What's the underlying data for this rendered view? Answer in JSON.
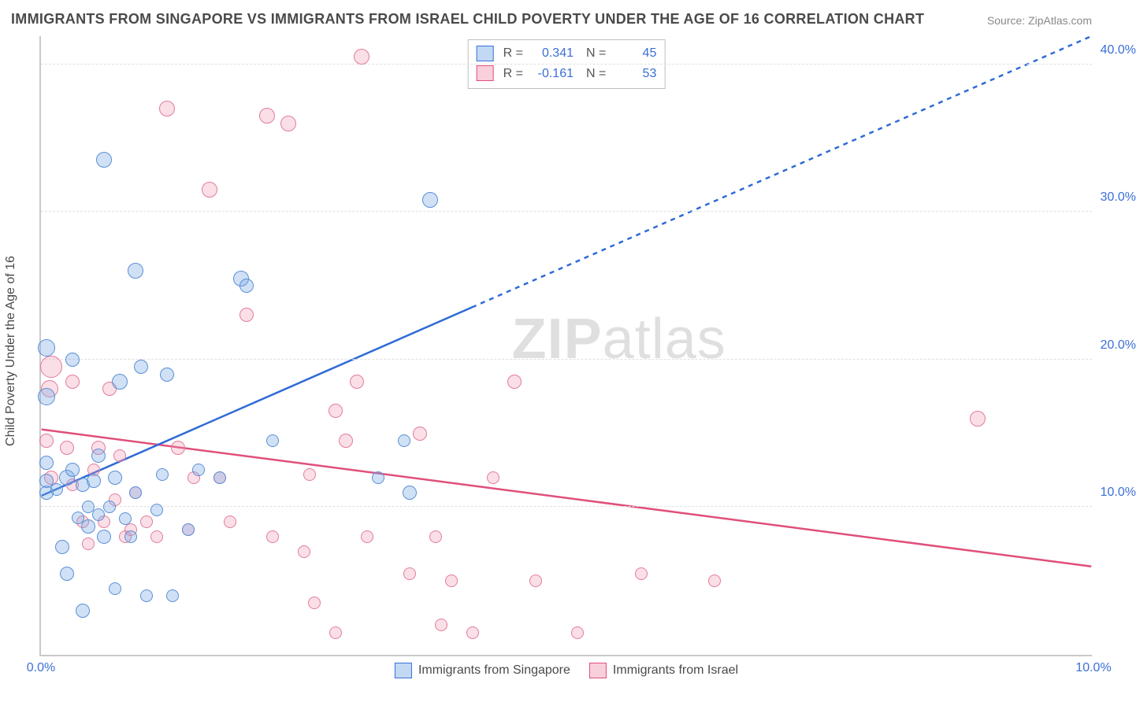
{
  "title": "IMMIGRANTS FROM SINGAPORE VS IMMIGRANTS FROM ISRAEL CHILD POVERTY UNDER THE AGE OF 16 CORRELATION CHART",
  "source": "Source: ZipAtlas.com",
  "ylabel": "Child Poverty Under the Age of 16",
  "watermark": "ZIPatlas",
  "chart": {
    "type": "scatter",
    "xlim": [
      0,
      10
    ],
    "ylim": [
      0,
      42
    ],
    "x_ticks": [
      {
        "v": 0,
        "label": "0.0%"
      },
      {
        "v": 10,
        "label": "10.0%"
      }
    ],
    "y_gridlines": [
      10,
      20,
      30,
      40
    ],
    "y_tick_labels": {
      "10": "10.0%",
      "20": "20.0%",
      "30": "30.0%",
      "40": "40.0%"
    },
    "background_color": "#ffffff",
    "grid_color": "#e0e0e0",
    "axis_color": "#c9c9c9",
    "axis_tick_color": "#3b6fd6",
    "title_color": "#4a4a4a",
    "title_fontsize": 18,
    "label_fontsize": 16
  },
  "stats_legend": [
    {
      "swatch": "blue",
      "R": "0.341",
      "N": "45"
    },
    {
      "swatch": "pink",
      "R": "-0.161",
      "N": "53"
    }
  ],
  "series_legend": [
    {
      "swatch": "blue",
      "label": "Immigrants from Singapore"
    },
    {
      "swatch": "pink",
      "label": "Immigrants from Israel"
    }
  ],
  "series": {
    "singapore": {
      "color_fill": "rgba(120,170,230,0.35)",
      "color_stroke": "#5b8fd6",
      "trend": {
        "x1": 0,
        "y1": 10.8,
        "x2": 10,
        "y2": 42,
        "solid_until_x": 4.1,
        "color": "#2e6bd6",
        "width": 2.5,
        "dash": "6,6"
      },
      "points": [
        {
          "x": 0.05,
          "y": 11.0,
          "r": 9
        },
        {
          "x": 0.05,
          "y": 11.8,
          "r": 9
        },
        {
          "x": 0.05,
          "y": 13.0,
          "r": 9
        },
        {
          "x": 0.05,
          "y": 17.5,
          "r": 11
        },
        {
          "x": 0.05,
          "y": 20.8,
          "r": 11
        },
        {
          "x": 0.15,
          "y": 11.2,
          "r": 8
        },
        {
          "x": 0.2,
          "y": 7.3,
          "r": 9
        },
        {
          "x": 0.25,
          "y": 5.5,
          "r": 9
        },
        {
          "x": 0.25,
          "y": 12.0,
          "r": 10
        },
        {
          "x": 0.3,
          "y": 12.5,
          "r": 9
        },
        {
          "x": 0.3,
          "y": 20.0,
          "r": 9
        },
        {
          "x": 0.35,
          "y": 9.3,
          "r": 8
        },
        {
          "x": 0.4,
          "y": 11.5,
          "r": 9
        },
        {
          "x": 0.4,
          "y": 3.0,
          "r": 9
        },
        {
          "x": 0.45,
          "y": 8.7,
          "r": 9
        },
        {
          "x": 0.45,
          "y": 10.0,
          "r": 8
        },
        {
          "x": 0.5,
          "y": 11.8,
          "r": 9
        },
        {
          "x": 0.55,
          "y": 9.5,
          "r": 8
        },
        {
          "x": 0.55,
          "y": 13.5,
          "r": 9
        },
        {
          "x": 0.6,
          "y": 8.0,
          "r": 9
        },
        {
          "x": 0.6,
          "y": 33.5,
          "r": 10
        },
        {
          "x": 0.65,
          "y": 10.0,
          "r": 8
        },
        {
          "x": 0.7,
          "y": 4.5,
          "r": 8
        },
        {
          "x": 0.7,
          "y": 12.0,
          "r": 9
        },
        {
          "x": 0.75,
          "y": 18.5,
          "r": 10
        },
        {
          "x": 0.8,
          "y": 9.2,
          "r": 8
        },
        {
          "x": 0.85,
          "y": 8.0,
          "r": 8
        },
        {
          "x": 0.9,
          "y": 11.0,
          "r": 8
        },
        {
          "x": 0.9,
          "y": 26.0,
          "r": 10
        },
        {
          "x": 0.95,
          "y": 19.5,
          "r": 9
        },
        {
          "x": 1.0,
          "y": 4.0,
          "r": 8
        },
        {
          "x": 1.1,
          "y": 9.8,
          "r": 8
        },
        {
          "x": 1.15,
          "y": 12.2,
          "r": 8
        },
        {
          "x": 1.2,
          "y": 19.0,
          "r": 9
        },
        {
          "x": 1.25,
          "y": 4.0,
          "r": 8
        },
        {
          "x": 1.4,
          "y": 8.5,
          "r": 8
        },
        {
          "x": 1.5,
          "y": 12.5,
          "r": 8
        },
        {
          "x": 1.7,
          "y": 12.0,
          "r": 8
        },
        {
          "x": 1.9,
          "y": 25.5,
          "r": 10
        },
        {
          "x": 1.95,
          "y": 25.0,
          "r": 9
        },
        {
          "x": 2.2,
          "y": 14.5,
          "r": 8
        },
        {
          "x": 3.2,
          "y": 12.0,
          "r": 8
        },
        {
          "x": 3.5,
          "y": 11.0,
          "r": 9
        },
        {
          "x": 3.45,
          "y": 14.5,
          "r": 8
        },
        {
          "x": 3.7,
          "y": 30.8,
          "r": 10
        }
      ]
    },
    "israel": {
      "color_fill": "rgba(240,150,175,0.30)",
      "color_stroke": "#e47b9c",
      "trend": {
        "x1": 0,
        "y1": 15.3,
        "x2": 10,
        "y2": 6.0,
        "solid_until_x": 10,
        "color": "#e04f7a",
        "width": 2.5,
        "dash": "0"
      },
      "points": [
        {
          "x": 0.05,
          "y": 14.5,
          "r": 9
        },
        {
          "x": 0.08,
          "y": 18.0,
          "r": 11
        },
        {
          "x": 0.1,
          "y": 19.5,
          "r": 14
        },
        {
          "x": 0.1,
          "y": 12.0,
          "r": 9
        },
        {
          "x": 0.25,
          "y": 14.0,
          "r": 9
        },
        {
          "x": 0.3,
          "y": 18.5,
          "r": 9
        },
        {
          "x": 0.3,
          "y": 11.5,
          "r": 8
        },
        {
          "x": 0.4,
          "y": 9.0,
          "r": 8
        },
        {
          "x": 0.45,
          "y": 7.5,
          "r": 8
        },
        {
          "x": 0.5,
          "y": 12.5,
          "r": 8
        },
        {
          "x": 0.55,
          "y": 14.0,
          "r": 9
        },
        {
          "x": 0.6,
          "y": 9.0,
          "r": 8
        },
        {
          "x": 0.65,
          "y": 18.0,
          "r": 9
        },
        {
          "x": 0.7,
          "y": 10.5,
          "r": 8
        },
        {
          "x": 0.75,
          "y": 13.5,
          "r": 8
        },
        {
          "x": 0.8,
          "y": 8.0,
          "r": 8
        },
        {
          "x": 0.85,
          "y": 8.5,
          "r": 8
        },
        {
          "x": 0.9,
          "y": 11.0,
          "r": 8
        },
        {
          "x": 1.0,
          "y": 9.0,
          "r": 8
        },
        {
          "x": 1.1,
          "y": 8.0,
          "r": 8
        },
        {
          "x": 1.2,
          "y": 37.0,
          "r": 10
        },
        {
          "x": 1.3,
          "y": 14.0,
          "r": 9
        },
        {
          "x": 1.4,
          "y": 8.5,
          "r": 8
        },
        {
          "x": 1.45,
          "y": 12.0,
          "r": 8
        },
        {
          "x": 1.6,
          "y": 31.5,
          "r": 10
        },
        {
          "x": 1.7,
          "y": 12.0,
          "r": 8
        },
        {
          "x": 1.8,
          "y": 9.0,
          "r": 8
        },
        {
          "x": 1.95,
          "y": 23.0,
          "r": 9
        },
        {
          "x": 2.15,
          "y": 36.5,
          "r": 10
        },
        {
          "x": 2.2,
          "y": 8.0,
          "r": 8
        },
        {
          "x": 2.35,
          "y": 36.0,
          "r": 10
        },
        {
          "x": 2.5,
          "y": 7.0,
          "r": 8
        },
        {
          "x": 2.55,
          "y": 12.2,
          "r": 8
        },
        {
          "x": 2.6,
          "y": 3.5,
          "r": 8
        },
        {
          "x": 2.8,
          "y": 1.5,
          "r": 8
        },
        {
          "x": 2.8,
          "y": 16.5,
          "r": 9
        },
        {
          "x": 2.9,
          "y": 14.5,
          "r": 9
        },
        {
          "x": 3.05,
          "y": 40.5,
          "r": 10
        },
        {
          "x": 3.0,
          "y": 18.5,
          "r": 9
        },
        {
          "x": 3.1,
          "y": 8.0,
          "r": 8
        },
        {
          "x": 3.5,
          "y": 5.5,
          "r": 8
        },
        {
          "x": 3.6,
          "y": 15.0,
          "r": 9
        },
        {
          "x": 3.75,
          "y": 8.0,
          "r": 8
        },
        {
          "x": 3.8,
          "y": 2.0,
          "r": 8
        },
        {
          "x": 3.9,
          "y": 5.0,
          "r": 8
        },
        {
          "x": 4.1,
          "y": 1.5,
          "r": 8
        },
        {
          "x": 4.3,
          "y": 12.0,
          "r": 8
        },
        {
          "x": 4.5,
          "y": 18.5,
          "r": 9
        },
        {
          "x": 4.7,
          "y": 5.0,
          "r": 8
        },
        {
          "x": 5.1,
          "y": 1.5,
          "r": 8
        },
        {
          "x": 5.7,
          "y": 5.5,
          "r": 8
        },
        {
          "x": 6.4,
          "y": 5.0,
          "r": 8
        },
        {
          "x": 8.9,
          "y": 16.0,
          "r": 10
        }
      ]
    }
  }
}
